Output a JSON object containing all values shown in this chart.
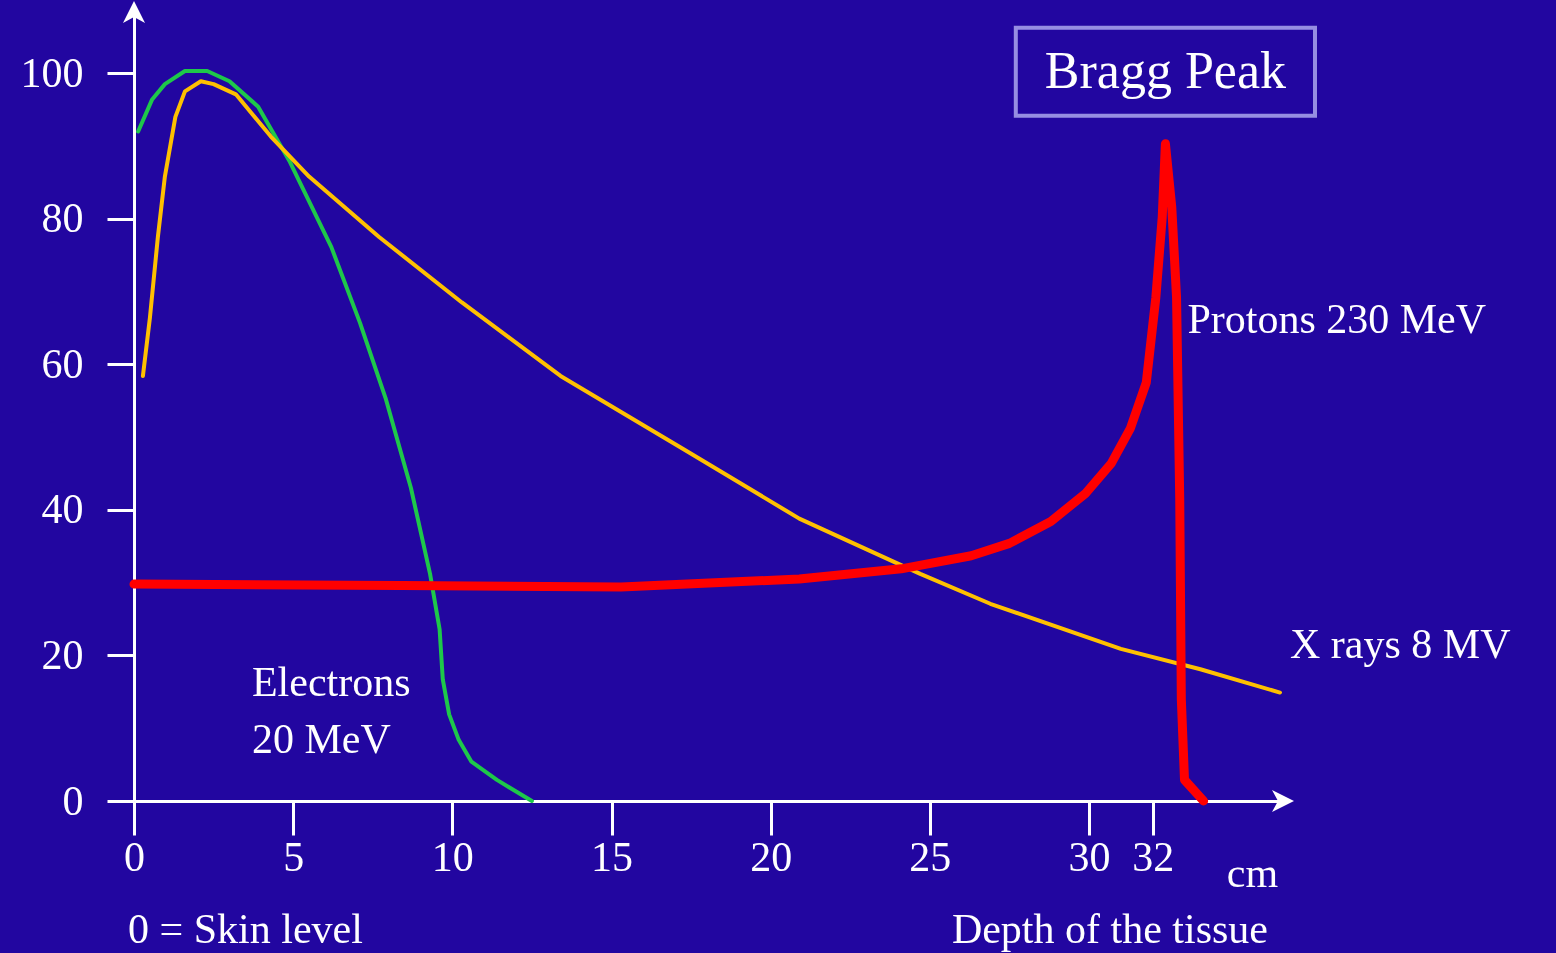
{
  "chart_data": {
    "type": "line",
    "xlabel": "cm",
    "xlim": [
      0,
      36
    ],
    "ylim": [
      0,
      108
    ],
    "xticks": [
      0,
      5,
      10,
      15,
      20,
      25,
      30,
      32
    ],
    "yticks": [
      0,
      20,
      40,
      60,
      80,
      100
    ],
    "grid": false,
    "marker": "none",
    "line_style": "solid",
    "annotations": [
      {
        "text": "Bragg Peak",
        "x": 32.4,
        "y": 90.3
      },
      "0 = Skin level",
      "Depth of the tissue"
    ],
    "series": [
      {
        "name": "Electrons 20 MeV",
        "color": "#1ec84a",
        "x": [
          0.13,
          0.57,
          0.97,
          1.6,
          2.3,
          3.0,
          3.9,
          4.9,
          6.2,
          7.1,
          7.9,
          8.7,
          9.3,
          9.6,
          9.7,
          9.9,
          10.2,
          10.6,
          11.4,
          12.5
        ],
        "values": [
          92,
          96.4,
          98.5,
          100.3,
          100.3,
          98.9,
          95.4,
          87.8,
          76.1,
          65.7,
          55.4,
          43,
          31.2,
          23.6,
          16.7,
          11.9,
          8.4,
          5.4,
          2.9,
          0
        ]
      },
      {
        "name": "X rays 8 MV",
        "color": "#ffc000",
        "x": [
          0.28,
          0.5,
          0.75,
          0.97,
          1.3,
          1.6,
          2.1,
          2.5,
          3.2,
          4.3,
          5.5,
          7.7,
          10.3,
          13.4,
          17.2,
          20.9,
          24.7,
          26.9,
          31,
          33.5,
          36
        ],
        "values": [
          58.4,
          66.4,
          77.5,
          85.8,
          94,
          97.5,
          98.9,
          98.5,
          97.1,
          91.3,
          85.8,
          77.5,
          68.5,
          58.4,
          48.5,
          38.8,
          31.2,
          27.1,
          20.9,
          18.1,
          14.9
        ]
      },
      {
        "name": "Protons 230 MeV",
        "color": "#ff0000",
        "x": [
          0,
          8.4,
          15.3,
          20.9,
          24.1,
          26.3,
          27.5,
          28.8,
          29.9,
          30.7,
          31.3,
          31.8,
          32.1,
          32.3,
          32.4,
          32.6,
          32.75,
          32.85,
          32.9,
          33.0,
          33.6
        ],
        "values": [
          29.8,
          29.6,
          29.4,
          30.5,
          31.9,
          33.7,
          35.4,
          38.4,
          42.3,
          46.4,
          51.2,
          57.5,
          69.2,
          80.2,
          90.3,
          81.6,
          69.2,
          41.6,
          14,
          2.9,
          0
        ]
      }
    ]
  }
}
